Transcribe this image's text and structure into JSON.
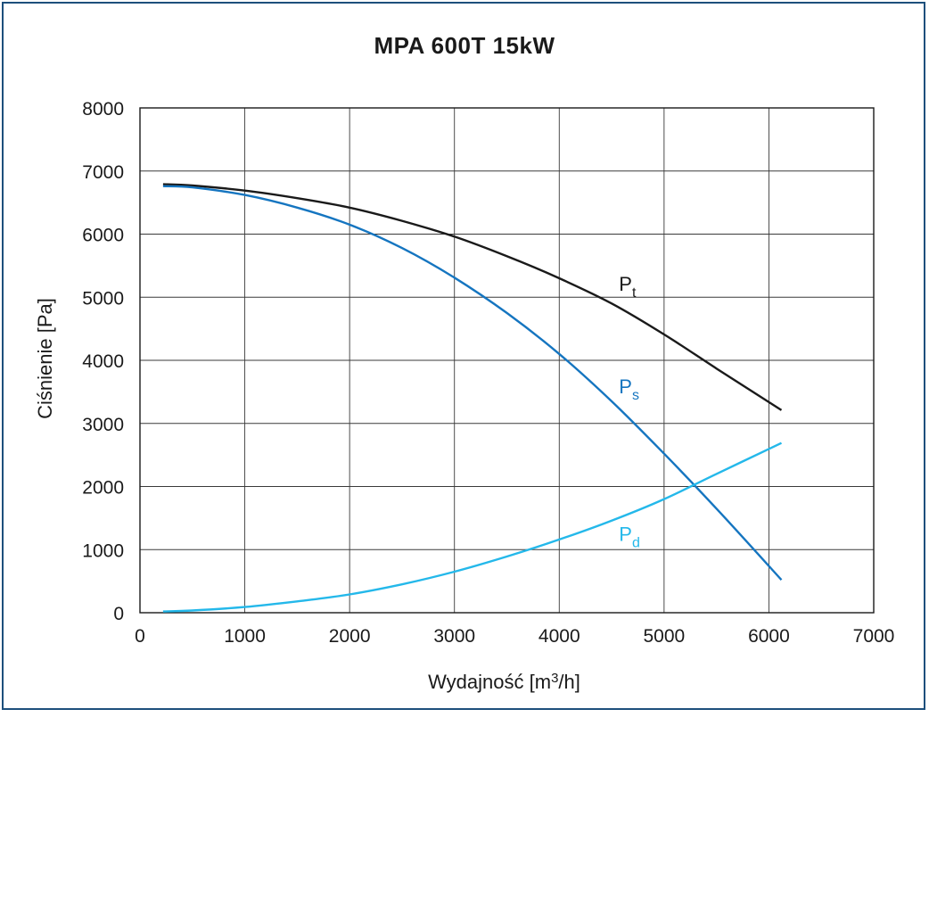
{
  "chart_data": {
    "type": "line",
    "title": "MPA 600T 15kW",
    "xlabel_main": "Wydajność [m",
    "xlabel_sup": "3",
    "xlabel_tail": "/h]",
    "ylabel": "Ciśnienie [Pa]",
    "xlim": [
      0,
      7000
    ],
    "ylim": [
      0,
      8000
    ],
    "x_ticks": [
      "0",
      "1000",
      "2000",
      "3000",
      "4000",
      "5000",
      "6000",
      "7000"
    ],
    "y_ticks": [
      "0",
      "1000",
      "2000",
      "3000",
      "4000",
      "5000",
      "6000",
      "7000",
      "8000"
    ],
    "grid": true,
    "series": [
      {
        "name": "P",
        "sub": "t",
        "color": "#1a1a1a",
        "x": [
          220,
          500,
          1000,
          1500,
          2000,
          2500,
          3000,
          3500,
          4000,
          4500,
          5000,
          5500,
          6120
        ],
        "values": [
          6790,
          6770,
          6690,
          6570,
          6420,
          6210,
          5960,
          5650,
          5300,
          4900,
          4410,
          3870,
          3210
        ]
      },
      {
        "name": "P",
        "sub": "s",
        "color": "#1575c0",
        "x": [
          220,
          500,
          1000,
          1500,
          2000,
          2500,
          3000,
          3500,
          4000,
          4500,
          5000,
          5500,
          6120
        ],
        "values": [
          6760,
          6740,
          6620,
          6420,
          6150,
          5780,
          5310,
          4750,
          4100,
          3350,
          2520,
          1650,
          520
        ]
      },
      {
        "name": "P",
        "sub": "d",
        "color": "#24b8ea",
        "x": [
          220,
          500,
          1000,
          1500,
          2000,
          2500,
          3000,
          3500,
          4000,
          4500,
          5000,
          5500,
          6120
        ],
        "values": [
          20,
          35,
          90,
          180,
          290,
          450,
          650,
          890,
          1160,
          1460,
          1800,
          2200,
          2690
        ]
      }
    ],
    "annotations": [
      {
        "series": 0,
        "x": 4570,
        "y": 5100
      },
      {
        "series": 1,
        "x": 4570,
        "y": 3480
      },
      {
        "series": 2,
        "x": 4570,
        "y": 1140
      }
    ]
  }
}
